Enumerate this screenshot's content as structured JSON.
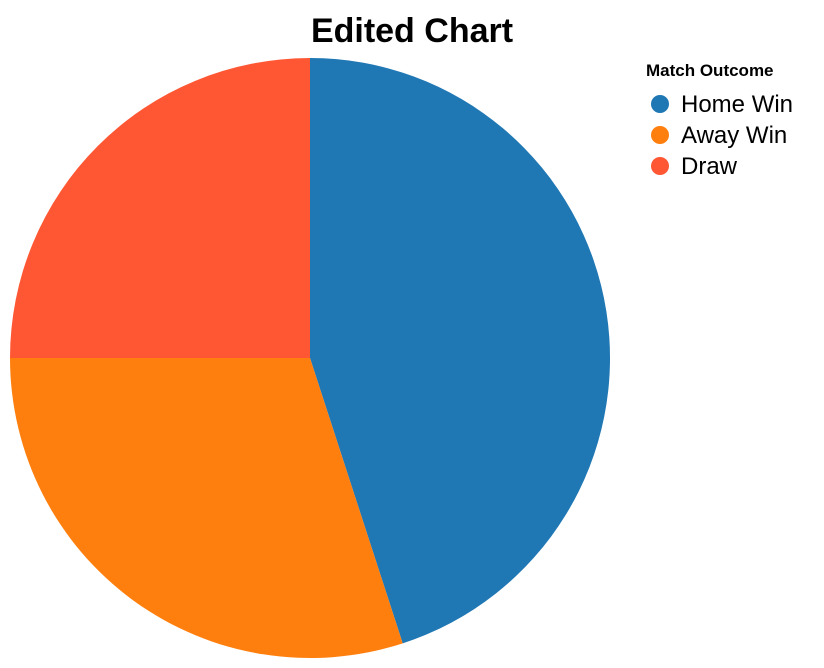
{
  "chart_data": {
    "type": "pie",
    "title": "Edited Chart",
    "legend": {
      "title": "Match Outcome",
      "placement": "top-right"
    },
    "slices": [
      {
        "label": "Home Win",
        "value": 45,
        "color": "#1f77b4"
      },
      {
        "label": "Away Win",
        "value": 30,
        "color": "#ff7f0e"
      },
      {
        "label": "Draw",
        "value": 25,
        "color": "#ff5733"
      }
    ]
  }
}
